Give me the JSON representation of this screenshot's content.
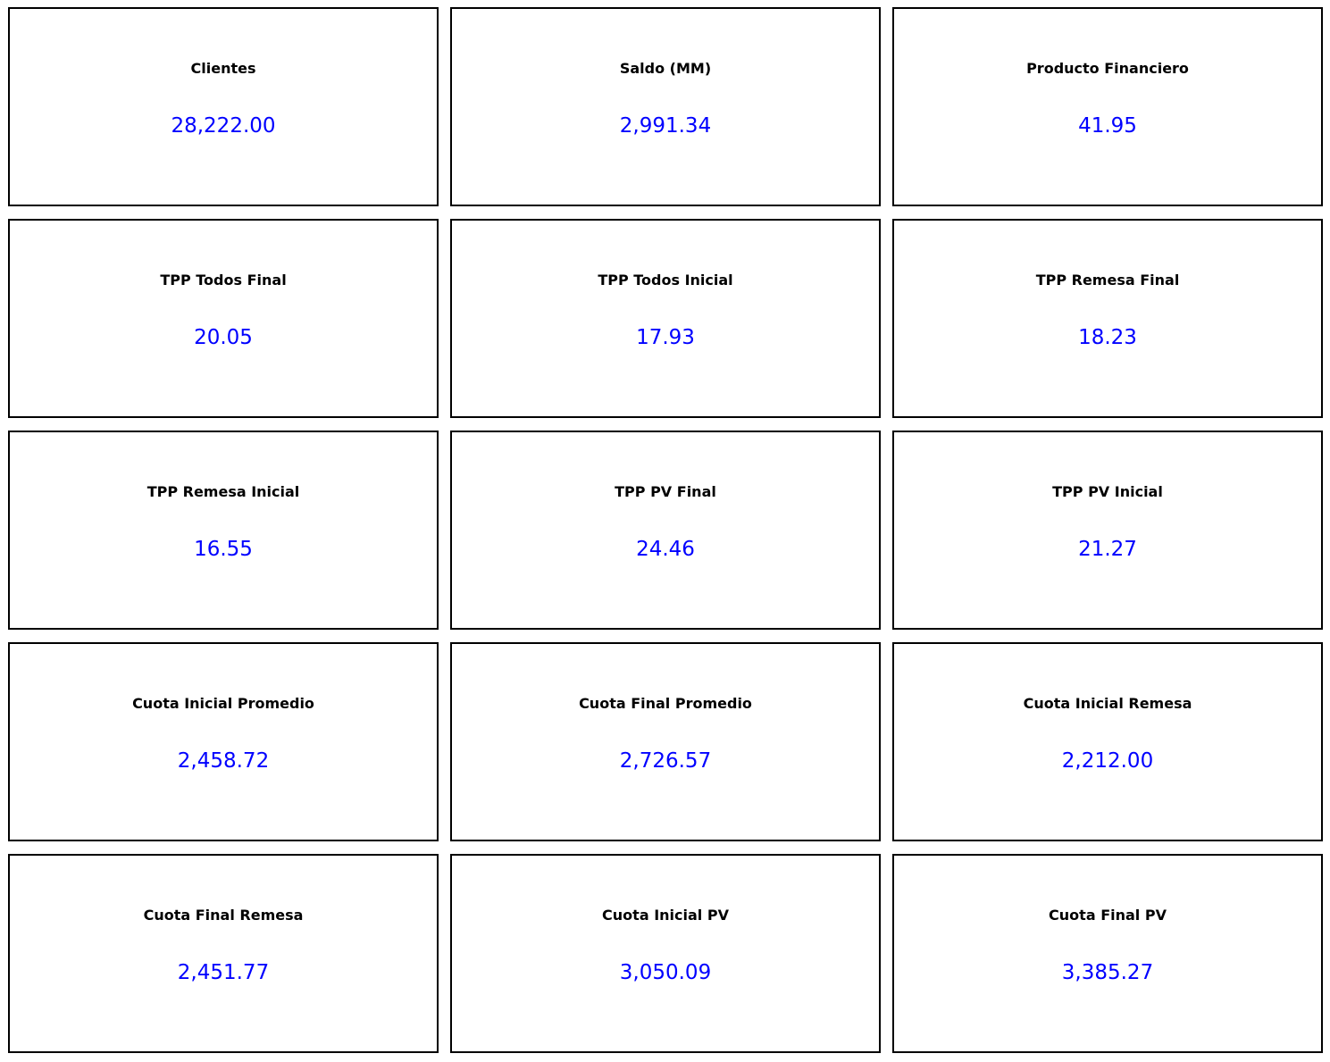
{
  "value_color": "#0000ff",
  "cards": [
    {
      "label": "Clientes",
      "value": "28,222.00"
    },
    {
      "label": "Saldo (MM)",
      "value": "2,991.34"
    },
    {
      "label": "Producto Financiero",
      "value": "41.95"
    },
    {
      "label": "TPP Todos Final",
      "value": "20.05"
    },
    {
      "label": "TPP Todos Inicial",
      "value": "17.93"
    },
    {
      "label": "TPP Remesa Final",
      "value": "18.23"
    },
    {
      "label": "TPP Remesa Inicial",
      "value": "16.55"
    },
    {
      "label": "TPP PV Final",
      "value": "24.46"
    },
    {
      "label": "TPP PV Inicial",
      "value": "21.27"
    },
    {
      "label": "Cuota Inicial Promedio",
      "value": "2,458.72"
    },
    {
      "label": "Cuota Final Promedio",
      "value": "2,726.57"
    },
    {
      "label": "Cuota Inicial Remesa",
      "value": "2,212.00"
    },
    {
      "label": "Cuota Final Remesa",
      "value": "2,451.77"
    },
    {
      "label": "Cuota Inicial PV",
      "value": "3,050.09"
    },
    {
      "label": "Cuota Final PV",
      "value": "3,385.27"
    }
  ]
}
